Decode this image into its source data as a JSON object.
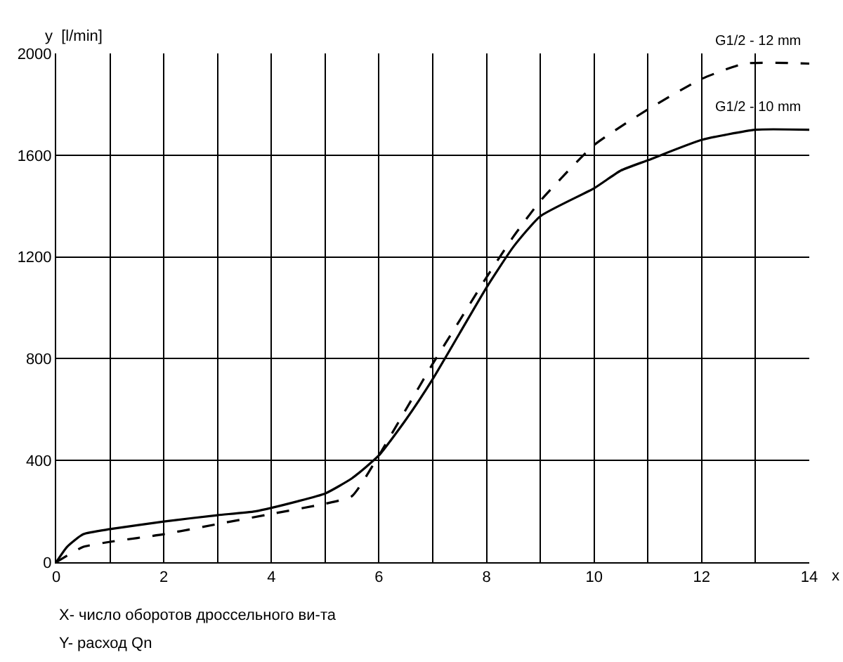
{
  "chart_data": {
    "type": "line",
    "xlabel": "x",
    "ylabel": "y  [l/min]",
    "series": [
      {
        "name": "G1/2 - 12 mm",
        "color": "#000000",
        "line_style": "dashed",
        "x": [
          0,
          0.5,
          1,
          2,
          3,
          4,
          5,
          5.5,
          6,
          6.5,
          7,
          7.5,
          8,
          8.5,
          9,
          10,
          11,
          12,
          12.8,
          14
        ],
        "values": [
          0,
          60,
          80,
          110,
          150,
          190,
          230,
          260,
          420,
          600,
          780,
          950,
          1120,
          1280,
          1420,
          1640,
          1780,
          1900,
          1960,
          1960
        ]
      },
      {
        "name": "G1/2 - 10 mm",
        "color": "#000000",
        "line_style": "solid",
        "x": [
          0,
          0.2,
          0.5,
          1,
          2,
          3,
          3.7,
          4.5,
          5,
          5.5,
          6,
          6.5,
          7,
          7.5,
          8,
          8.5,
          9,
          10,
          10.5,
          11,
          12,
          13,
          14
        ],
        "values": [
          0,
          60,
          110,
          130,
          160,
          185,
          200,
          240,
          270,
          330,
          420,
          560,
          720,
          900,
          1080,
          1240,
          1360,
          1470,
          1540,
          1580,
          1660,
          1700,
          1700
        ]
      }
    ],
    "xlim": [
      0,
      14
    ],
    "xticks": [
      0,
      {
        "value": 1,
        "label": null
      },
      2,
      {
        "value": 3,
        "label": null
      },
      4,
      {
        "value": 5,
        "label": null
      },
      6,
      {
        "value": 7,
        "label": null
      },
      8,
      {
        "value": 9,
        "label": null
      },
      10,
      {
        "value": 11,
        "label": null
      },
      12,
      {
        "value": 13,
        "label": null
      },
      14
    ],
    "ylim": [
      0,
      2000
    ],
    "yticks": [
      0,
      400,
      800,
      1200,
      1600,
      2000
    ],
    "grid": true,
    "legend": false,
    "marker": "none",
    "annotations": [
      "X- число оборотов дроссельного ви-та",
      "Y- расход Qn"
    ]
  }
}
